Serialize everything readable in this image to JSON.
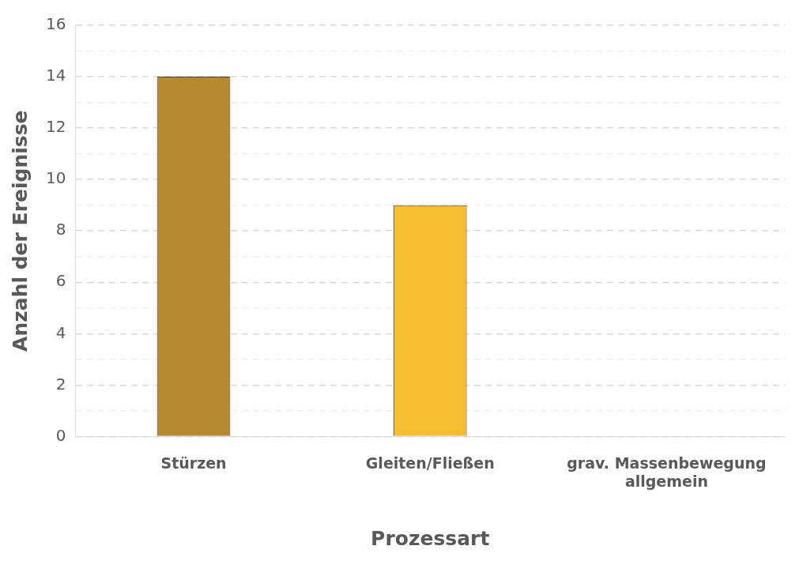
{
  "chart_data": {
    "type": "bar",
    "xlabel": "Prozessart",
    "ylabel": "Anzahl der Ereignisse",
    "categories": [
      "Stürzen",
      "Gleiten/Fließen",
      "grav. Massenbewegung allgemein"
    ],
    "values": [
      14,
      9,
      0
    ],
    "colors": [
      "#b58a2e",
      "#f5bd2f",
      "#f5bd2f"
    ],
    "ylim": [
      0,
      16
    ],
    "yticks": [
      0,
      {
        "value": 1,
        "label": null
      },
      2,
      {
        "value": 3,
        "label": null
      },
      4,
      {
        "value": 5,
        "label": null
      },
      6,
      {
        "value": 7,
        "label": null
      },
      8,
      {
        "value": 9,
        "label": null
      },
      10,
      {
        "value": 11,
        "label": null
      },
      12,
      {
        "value": 13,
        "label": null
      },
      14,
      {
        "value": 15,
        "label": null
      },
      16
    ],
    "grid": "y",
    "legend": false
  }
}
